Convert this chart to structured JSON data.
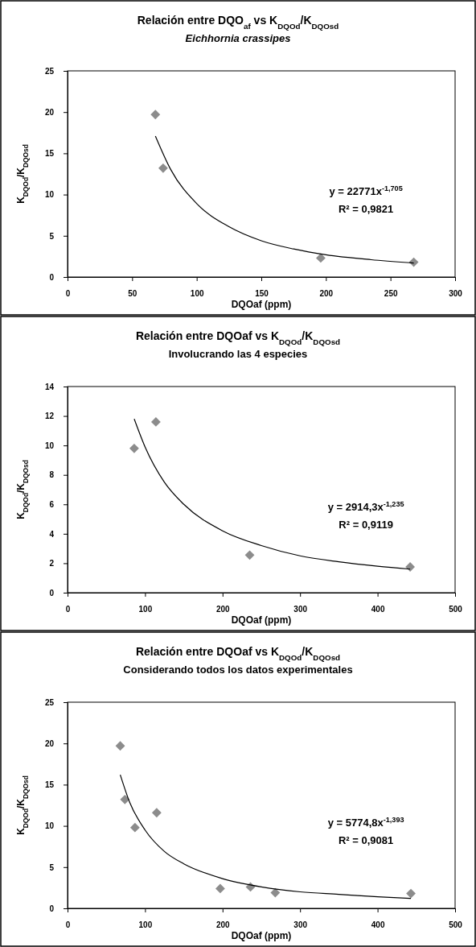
{
  "chart_data": [
    {
      "type": "scatter",
      "title": "Relación entre DQO$_{af}$ vs K$_{DQOd}$/K$_{DQOsd}$",
      "subtitle": "Eichhornia crassipes",
      "xlabel": "DQOaf (ppm)",
      "ylabel": "K$_{DQOd}$/K$_{DQOsd}$",
      "xlim": [
        0,
        300
      ],
      "xticks": [
        0,
        50,
        100,
        150,
        200,
        250,
        300
      ],
      "ylim": [
        0,
        25
      ],
      "yticks": [
        0,
        5,
        10,
        15,
        20,
        25
      ],
      "annotations": [
        "y = 22771x$^{-1,705}$",
        "R² = 0,9821"
      ],
      "series": [
        {
          "type": "scatter",
          "color": "#8c8c8c",
          "marker": "diamond",
          "x": [
            68,
            74,
            196,
            268
          ],
          "values": [
            19.7,
            13.2,
            2.3,
            1.8
          ]
        },
        {
          "type": "line",
          "color": "#000000",
          "marker": "none",
          "x": [
            68,
            80,
            100,
            125,
            150,
            175,
            200,
            235,
            268
          ],
          "values": [
            17.1,
            13.0,
            8.9,
            6.1,
            4.4,
            3.4,
            2.7,
            2.1,
            1.7
          ]
        }
      ]
    },
    {
      "type": "scatter",
      "title": "Relación entre DQOaf vs K$_{DQOd}$/K$_{DQOsd}$",
      "subtitle": "Involucrando las 4 especies",
      "xlabel": "DQOaf (ppm)",
      "ylabel": "K$_{DQOd}$/K$_{DQOsd}$",
      "xlim": [
        0,
        500
      ],
      "xticks": [
        0,
        100,
        200,
        300,
        400,
        500
      ],
      "ylim": [
        0,
        14
      ],
      "yticks": [
        0,
        2,
        4,
        6,
        8,
        10,
        12,
        14
      ],
      "annotations": [
        "y = 2914,3x$^{-1,235}$",
        "R² = 0,9119"
      ],
      "series": [
        {
          "type": "scatter",
          "color": "#8c8c8c",
          "marker": "diamond",
          "x": [
            86,
            114,
            235,
            442
          ],
          "values": [
            9.8,
            11.6,
            2.55,
            1.75
          ]
        },
        {
          "type": "line",
          "color": "#000000",
          "marker": "none",
          "x": [
            86,
            100,
            125,
            150,
            200,
            250,
            300,
            350,
            400,
            442
          ],
          "values": [
            11.8,
            9.9,
            7.5,
            6.0,
            4.2,
            3.2,
            2.5,
            2.1,
            1.8,
            1.6
          ]
        }
      ]
    },
    {
      "type": "scatter",
      "title": "Relación entre DQOaf vs K$_{DQOd}$/K$_{DQOsd}$",
      "subtitle": "Considerando todos los datos experimentales",
      "xlabel": "DQOaf (ppm)",
      "ylabel": "K$_{DQOd}$/K$_{DQOsd}$",
      "xlim": [
        0,
        500
      ],
      "xticks": [
        0,
        100,
        200,
        300,
        400,
        500
      ],
      "ylim": [
        0,
        25
      ],
      "yticks": [
        0,
        5,
        10,
        15,
        20,
        25
      ],
      "annotations": [
        "y = 5774,8x$^{-1,393}$",
        "R² = 0,9081"
      ],
      "series": [
        {
          "type": "scatter",
          "color": "#8c8c8c",
          "marker": "diamond",
          "x": [
            68,
            74,
            87,
            115,
            197,
            236,
            268,
            443
          ],
          "values": [
            19.7,
            13.2,
            9.8,
            11.6,
            2.4,
            2.6,
            1.9,
            1.8
          ]
        },
        {
          "type": "line",
          "color": "#000000",
          "marker": "none",
          "x": [
            68,
            80,
            100,
            125,
            150,
            200,
            250,
            300,
            350,
            400,
            443
          ],
          "values": [
            16.2,
            12.9,
            9.5,
            6.9,
            5.4,
            3.6,
            2.6,
            2.0,
            1.7,
            1.4,
            1.2
          ]
        }
      ]
    }
  ]
}
